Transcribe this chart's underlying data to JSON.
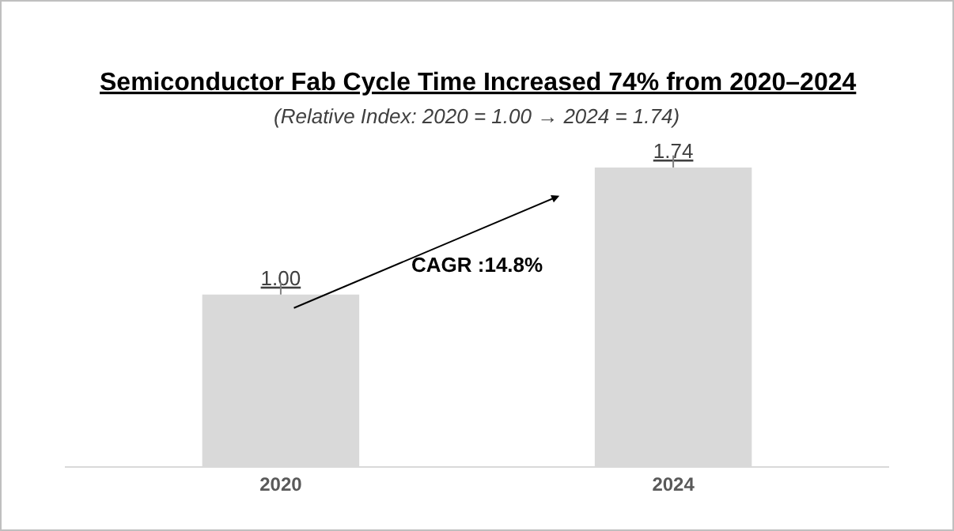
{
  "chart_data": {
    "type": "bar",
    "title": "Semiconductor Fab Cycle Time Increased 74% from 2020–2024",
    "subtitle": "(Relative Index: 2020 = 1.00 → 2024 = 1.74)",
    "categories": [
      "2020",
      "2024"
    ],
    "values": [
      1.0,
      1.74
    ],
    "value_labels": [
      "1.00",
      "1.74"
    ],
    "color": "#d9d9d9",
    "annotations": [
      "CAGR :14.8%"
    ],
    "grid": false,
    "legend": false
  }
}
